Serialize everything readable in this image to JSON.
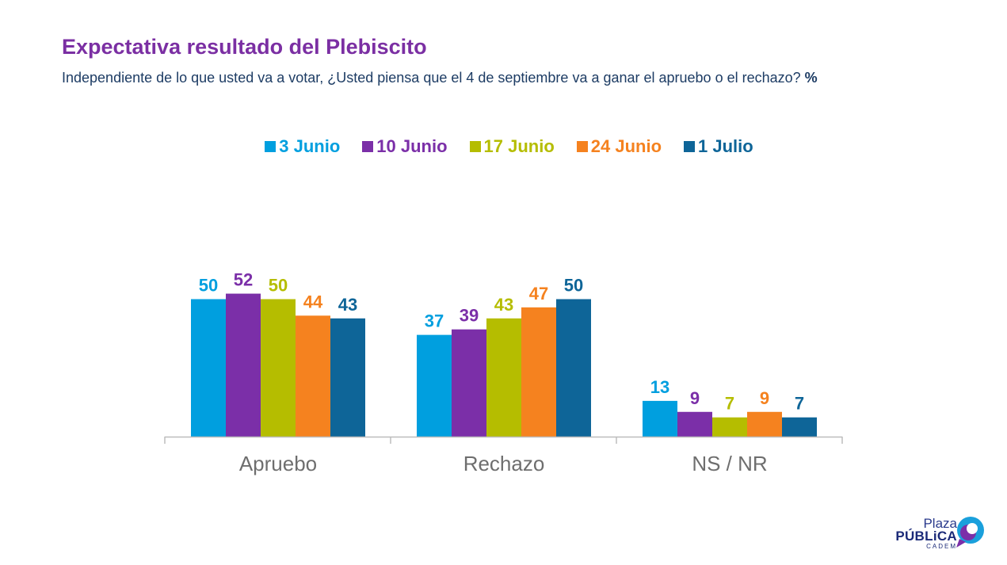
{
  "header": {
    "title": "Expectativa resultado del Plebiscito",
    "subtitle": "Independiente de lo que usted va a votar, ¿Usted piensa que el 4 de septiembre va a ganar el apruebo o el rechazo?",
    "subtitle_unit": "%"
  },
  "chart_data": {
    "type": "bar",
    "title": "Expectativa resultado del Plebiscito",
    "xlabel": "",
    "ylabel": "",
    "ylim": [
      0,
      60
    ],
    "grid": false,
    "legend_position": "top-center",
    "categories": [
      "Apruebo",
      "Rechazo",
      "NS / NR"
    ],
    "series": [
      {
        "name": "3 Junio",
        "color": "#009fdf",
        "values": [
          50,
          37,
          13
        ]
      },
      {
        "name": "10 Junio",
        "color": "#7b2fa8",
        "values": [
          52,
          39,
          9
        ]
      },
      {
        "name": "17 Junio",
        "color": "#b5bd00",
        "values": [
          50,
          43,
          7
        ]
      },
      {
        "name": "24 Junio",
        "color": "#f5821f",
        "values": [
          44,
          47,
          9
        ]
      },
      {
        "name": "1 Julio",
        "color": "#0e6598",
        "values": [
          43,
          50,
          7
        ]
      }
    ]
  },
  "logo": {
    "line1": "Plaza",
    "line2": "PÚBLiCA",
    "line3": "CADEM",
    "colors": {
      "mark_blue": "#1aa0dc",
      "mark_purple": "#7b2fa8",
      "text": "#1b2a78"
    }
  }
}
